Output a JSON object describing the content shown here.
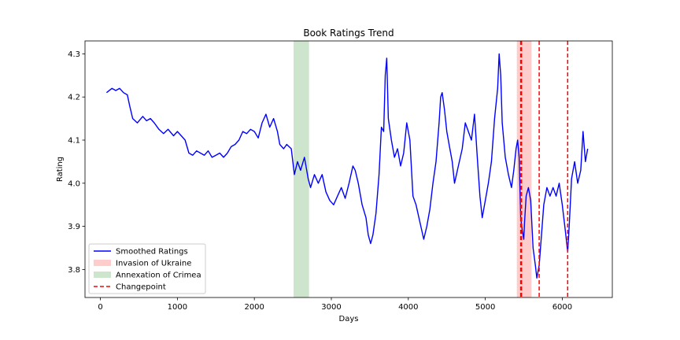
{
  "chart_data": {
    "type": "line",
    "title": "Book Ratings Trend",
    "xlabel": "Days",
    "ylabel": "Rating",
    "xlim": [
      -200,
      6650
    ],
    "ylim": [
      3.735,
      4.33
    ],
    "xticks": [
      0,
      1000,
      2000,
      3000,
      4000,
      5000,
      6000
    ],
    "yticks": [
      3.8,
      3.9,
      4.0,
      4.1,
      4.2,
      4.3
    ],
    "ytick_labels": [
      "3.8",
      "3.9",
      "4.0",
      "4.1",
      "4.2",
      "4.3"
    ],
    "grid": false,
    "legend_position": "lower-left",
    "series": [
      {
        "name": "Smoothed Ratings",
        "color": "#0000ff",
        "points": [
          [
            80,
            4.21
          ],
          [
            150,
            4.22
          ],
          [
            200,
            4.215
          ],
          [
            250,
            4.22
          ],
          [
            300,
            4.21
          ],
          [
            350,
            4.205
          ],
          [
            380,
            4.18
          ],
          [
            420,
            4.15
          ],
          [
            480,
            4.14
          ],
          [
            550,
            4.155
          ],
          [
            600,
            4.145
          ],
          [
            650,
            4.15
          ],
          [
            700,
            4.14
          ],
          [
            760,
            4.125
          ],
          [
            820,
            4.115
          ],
          [
            880,
            4.125
          ],
          [
            950,
            4.11
          ],
          [
            1000,
            4.12
          ],
          [
            1050,
            4.11
          ],
          [
            1100,
            4.1
          ],
          [
            1150,
            4.07
          ],
          [
            1200,
            4.065
          ],
          [
            1250,
            4.075
          ],
          [
            1300,
            4.07
          ],
          [
            1350,
            4.065
          ],
          [
            1400,
            4.075
          ],
          [
            1450,
            4.06
          ],
          [
            1500,
            4.065
          ],
          [
            1550,
            4.07
          ],
          [
            1600,
            4.06
          ],
          [
            1650,
            4.07
          ],
          [
            1700,
            4.085
          ],
          [
            1750,
            4.09
          ],
          [
            1800,
            4.1
          ],
          [
            1850,
            4.12
          ],
          [
            1900,
            4.115
          ],
          [
            1950,
            4.125
          ],
          [
            2000,
            4.12
          ],
          [
            2050,
            4.105
          ],
          [
            2100,
            4.14
          ],
          [
            2150,
            4.16
          ],
          [
            2200,
            4.13
          ],
          [
            2250,
            4.15
          ],
          [
            2300,
            4.12
          ],
          [
            2330,
            4.09
          ],
          [
            2380,
            4.08
          ],
          [
            2420,
            4.09
          ],
          [
            2480,
            4.08
          ],
          [
            2520,
            4.02
          ],
          [
            2560,
            4.05
          ],
          [
            2600,
            4.03
          ],
          [
            2650,
            4.06
          ],
          [
            2700,
            4.01
          ],
          [
            2730,
            3.99
          ],
          [
            2780,
            4.02
          ],
          [
            2830,
            4.0
          ],
          [
            2880,
            4.02
          ],
          [
            2930,
            3.98
          ],
          [
            2980,
            3.96
          ],
          [
            3030,
            3.95
          ],
          [
            3080,
            3.97
          ],
          [
            3130,
            3.99
          ],
          [
            3180,
            3.965
          ],
          [
            3230,
            4.0
          ],
          [
            3280,
            4.04
          ],
          [
            3310,
            4.03
          ],
          [
            3350,
            4.0
          ],
          [
            3400,
            3.95
          ],
          [
            3450,
            3.92
          ],
          [
            3480,
            3.88
          ],
          [
            3510,
            3.86
          ],
          [
            3540,
            3.88
          ],
          [
            3580,
            3.93
          ],
          [
            3620,
            4.02
          ],
          [
            3650,
            4.13
          ],
          [
            3680,
            4.12
          ],
          [
            3700,
            4.25
          ],
          [
            3720,
            4.29
          ],
          [
            3740,
            4.15
          ],
          [
            3780,
            4.1
          ],
          [
            3820,
            4.06
          ],
          [
            3860,
            4.08
          ],
          [
            3900,
            4.04
          ],
          [
            3940,
            4.07
          ],
          [
            3980,
            4.14
          ],
          [
            4020,
            4.1
          ],
          [
            4060,
            3.97
          ],
          [
            4100,
            3.95
          ],
          [
            4150,
            3.91
          ],
          [
            4200,
            3.87
          ],
          [
            4240,
            3.9
          ],
          [
            4280,
            3.94
          ],
          [
            4320,
            4.0
          ],
          [
            4360,
            4.05
          ],
          [
            4400,
            4.14
          ],
          [
            4420,
            4.2
          ],
          [
            4440,
            4.21
          ],
          [
            4470,
            4.17
          ],
          [
            4500,
            4.12
          ],
          [
            4530,
            4.09
          ],
          [
            4570,
            4.05
          ],
          [
            4600,
            4.0
          ],
          [
            4650,
            4.04
          ],
          [
            4700,
            4.08
          ],
          [
            4740,
            4.14
          ],
          [
            4780,
            4.12
          ],
          [
            4820,
            4.1
          ],
          [
            4860,
            4.16
          ],
          [
            4900,
            4.05
          ],
          [
            4930,
            3.97
          ],
          [
            4960,
            3.92
          ],
          [
            5000,
            3.96
          ],
          [
            5040,
            4.0
          ],
          [
            5080,
            4.05
          ],
          [
            5120,
            4.15
          ],
          [
            5160,
            4.22
          ],
          [
            5180,
            4.3
          ],
          [
            5200,
            4.25
          ],
          [
            5220,
            4.14
          ],
          [
            5260,
            4.06
          ],
          [
            5300,
            4.02
          ],
          [
            5340,
            3.99
          ],
          [
            5370,
            4.03
          ],
          [
            5400,
            4.08
          ],
          [
            5420,
            4.1
          ],
          [
            5440,
            4.06
          ],
          [
            5460,
            3.92
          ],
          [
            5480,
            3.89
          ],
          [
            5500,
            3.87
          ],
          [
            5510,
            3.91
          ],
          [
            5530,
            3.97
          ],
          [
            5560,
            3.99
          ],
          [
            5590,
            3.96
          ],
          [
            5620,
            3.85
          ],
          [
            5650,
            3.81
          ],
          [
            5670,
            3.78
          ],
          [
            5700,
            3.81
          ],
          [
            5730,
            3.88
          ],
          [
            5760,
            3.95
          ],
          [
            5800,
            3.99
          ],
          [
            5840,
            3.97
          ],
          [
            5880,
            3.99
          ],
          [
            5920,
            3.97
          ],
          [
            5960,
            4.0
          ],
          [
            6000,
            3.95
          ],
          [
            6040,
            3.89
          ],
          [
            6070,
            3.84
          ],
          [
            6090,
            3.9
          ],
          [
            6120,
            4.01
          ],
          [
            6160,
            4.05
          ],
          [
            6200,
            4.0
          ],
          [
            6240,
            4.03
          ],
          [
            6270,
            4.12
          ],
          [
            6300,
            4.05
          ],
          [
            6330,
            4.08
          ]
        ]
      }
    ],
    "bands": [
      {
        "name": "Invasion of Ukraine",
        "x0": 5410,
        "x1": 5600,
        "color": "#ff9999"
      },
      {
        "name": "Annexation of Crimea",
        "x0": 2510,
        "x1": 2710,
        "color": "#99cc99"
      }
    ],
    "changepoints": {
      "name": "Changepoint",
      "color": "#ff0000",
      "x": [
        5460,
        5470,
        5700,
        6070
      ]
    }
  }
}
